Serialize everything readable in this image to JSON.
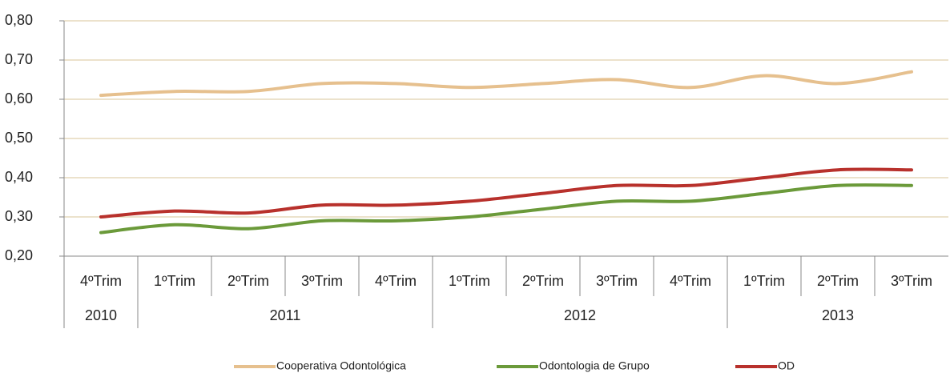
{
  "chart_data": {
    "type": "line",
    "categories": [
      "4ºTrim",
      "1ºTrim",
      "2ºTrim",
      "3ºTrim",
      "4ºTrim",
      "1ºTrim",
      "2ºTrim",
      "3ºTrim",
      "4ºTrim",
      "1ºTrim",
      "2ºTrim",
      "3ºTrim"
    ],
    "years": [
      "2010",
      "2011",
      null,
      null,
      null,
      "2012",
      null,
      null,
      null,
      "2013",
      null,
      null
    ],
    "series": [
      {
        "name": "Cooperativa Odontológica",
        "color": "#e6c08e",
        "values": [
          0.61,
          0.62,
          0.62,
          0.64,
          0.64,
          0.63,
          0.64,
          0.65,
          0.63,
          0.66,
          0.64,
          0.67
        ]
      },
      {
        "name": "Odontologia de Grupo",
        "color": "#6b9a3a",
        "values": [
          0.26,
          0.28,
          0.27,
          0.29,
          0.29,
          0.3,
          0.32,
          0.34,
          0.34,
          0.36,
          0.38,
          0.38
        ]
      },
      {
        "name": "OD",
        "color": "#b8312c",
        "values": [
          0.3,
          0.315,
          0.31,
          0.33,
          0.33,
          0.34,
          0.36,
          0.38,
          0.38,
          0.4,
          0.42,
          0.42
        ]
      }
    ],
    "ylim": [
      0.2,
      0.8
    ],
    "yticks": [
      {
        "value": 0.2,
        "label": "0,20"
      },
      {
        "value": 0.3,
        "label": "0,30"
      },
      {
        "value": 0.4,
        "label": "0,40"
      },
      {
        "value": 0.5,
        "label": "0,50"
      },
      {
        "value": 0.6,
        "label": "0,60"
      },
      {
        "value": 0.7,
        "label": "0,70"
      },
      {
        "value": 0.8,
        "label": "0,80"
      }
    ],
    "grid": true,
    "legend": "bottom"
  }
}
